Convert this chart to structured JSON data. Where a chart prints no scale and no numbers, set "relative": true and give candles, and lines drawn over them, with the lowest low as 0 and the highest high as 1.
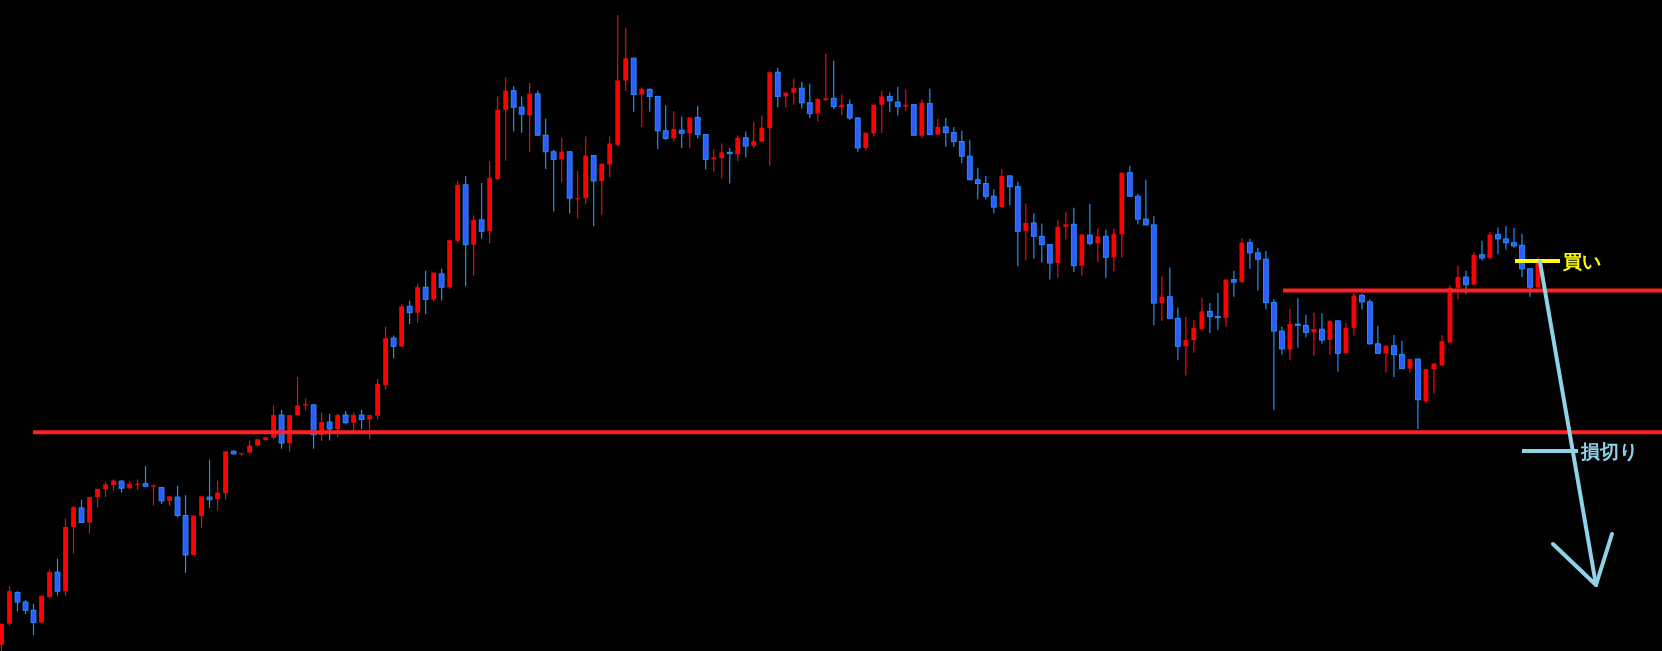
{
  "chart_data": {
    "type": "candlestick",
    "relative": true,
    "categories": [
      null,
      null,
      null,
      null,
      null,
      null,
      null,
      null,
      null,
      null,
      null,
      null,
      null,
      null,
      null,
      null,
      null,
      null,
      null,
      null,
      null,
      null,
      null,
      null,
      null,
      null,
      null,
      null,
      null,
      null,
      null,
      null,
      null,
      null,
      null,
      null,
      null,
      null,
      null,
      null,
      null,
      null,
      null,
      null,
      null,
      null,
      null,
      null,
      null,
      null,
      null,
      null,
      null,
      null,
      null,
      null,
      null,
      null,
      null,
      null,
      null,
      null,
      null,
      null,
      null,
      null,
      null,
      null,
      null,
      null,
      null,
      null,
      null,
      null,
      null,
      null,
      null,
      null,
      null,
      null,
      null,
      null,
      null,
      null,
      null,
      null,
      null,
      null,
      null,
      null,
      null,
      null,
      null,
      null,
      null,
      null,
      null,
      null,
      null,
      null,
      null,
      null,
      null,
      null,
      null,
      null,
      null,
      null,
      null,
      null,
      null,
      null,
      null,
      null,
      null,
      null,
      null,
      null,
      null,
      null,
      null,
      null,
      null,
      null,
      null,
      null,
      null,
      null,
      null,
      null,
      null,
      null,
      null,
      null,
      null,
      null,
      null,
      null,
      null,
      null,
      null,
      null,
      null,
      null,
      null,
      null,
      null,
      null,
      null,
      null,
      null,
      null,
      null,
      null,
      null,
      null,
      null,
      null,
      null,
      null,
      null,
      null,
      null,
      null,
      null,
      null,
      null,
      null,
      null,
      null,
      null,
      null,
      null,
      null,
      null,
      null,
      null,
      null,
      null,
      null,
      null,
      null,
      null,
      null,
      null,
      null,
      null,
      null,
      null,
      null,
      null,
      null,
      null
    ],
    "ohlc": [
      [
        0.01,
        0.043,
        0,
        0.043
      ],
      [
        0.043,
        0.102,
        0.04,
        0.094
      ],
      [
        0.092,
        0.094,
        0.062,
        0.077
      ],
      [
        0.077,
        0.08,
        0.058,
        0.064
      ],
      [
        0.064,
        0.074,
        0.025,
        0.045
      ],
      [
        0.045,
        0.087,
        0.044,
        0.087
      ],
      [
        0.085,
        0.128,
        0.083,
        0.124
      ],
      [
        0.124,
        0.145,
        0.087,
        0.094
      ],
      [
        0.094,
        0.208,
        0.086,
        0.195
      ],
      [
        0.195,
        0.228,
        0.153,
        0.226
      ],
      [
        0.225,
        0.238,
        0.202,
        0.202
      ],
      [
        0.202,
        0.242,
        0.185,
        0.242
      ],
      [
        0.242,
        0.255,
        0.226,
        0.255
      ],
      [
        0.254,
        0.266,
        0.242,
        0.262
      ],
      [
        0.261,
        0.27,
        0.252,
        0.268
      ],
      [
        0.267,
        0.269,
        0.249,
        0.256
      ],
      [
        0.256,
        0.267,
        0.255,
        0.263
      ],
      [
        0.262,
        0.27,
        0.253,
        0.263
      ],
      [
        0.263,
        0.291,
        0.258,
        0.259
      ],
      [
        0.259,
        0.262,
        0.229,
        0.26
      ],
      [
        0.257,
        0.258,
        0.231,
        0.236
      ],
      [
        0.236,
        0.244,
        0.228,
        0.243
      ],
      [
        0.242,
        0.26,
        0.21,
        0.213
      ],
      [
        0.213,
        0.245,
        0.123,
        0.151
      ],
      [
        0.151,
        0.213,
        0.151,
        0.213
      ],
      [
        0.212,
        0.243,
        0.194,
        0.243
      ],
      [
        0.242,
        0.301,
        0.225,
        0.238
      ],
      [
        0.239,
        0.268,
        0.221,
        0.249
      ],
      [
        0.248,
        0.314,
        0.238,
        0.314
      ],
      [
        0.314,
        0.316,
        0.309,
        0.31
      ],
      [
        0.31,
        0.311,
        0.307,
        0.311
      ],
      [
        0.312,
        0.331,
        0.311,
        0.323
      ],
      [
        0.323,
        0.334,
        0.322,
        0.333
      ],
      [
        0.332,
        0.336,
        0.331,
        0.336
      ],
      [
        0.335,
        0.386,
        0.333,
        0.371
      ],
      [
        0.371,
        0.379,
        0.318,
        0.327
      ],
      [
        0.327,
        0.371,
        0.313,
        0.371
      ],
      [
        0.371,
        0.431,
        0.37,
        0.386
      ],
      [
        0.386,
        0.397,
        0.378,
        0.388
      ],
      [
        0.387,
        0.388,
        0.318,
        0.34
      ],
      [
        0.34,
        0.375,
        0.33,
        0.36
      ],
      [
        0.36,
        0.373,
        0.331,
        0.349
      ],
      [
        0.349,
        0.373,
        0.336,
        0.371
      ],
      [
        0.371,
        0.377,
        0.356,
        0.359
      ],
      [
        0.359,
        0.375,
        0.345,
        0.371
      ],
      [
        0.371,
        0.379,
        0.349,
        0.364
      ],
      [
        0.364,
        0.371,
        0.333,
        0.371
      ],
      [
        0.37,
        0.428,
        0.364,
        0.42
      ],
      [
        0.418,
        0.51,
        0.411,
        0.492
      ],
      [
        0.492,
        0.496,
        0.46,
        0.479
      ],
      [
        0.479,
        0.546,
        0.478,
        0.542
      ],
      [
        0.542,
        0.551,
        0.514,
        0.532
      ],
      [
        0.532,
        0.578,
        0.516,
        0.572
      ],
      [
        0.572,
        0.598,
        0.53,
        0.553
      ],
      [
        0.553,
        0.595,
        0.55,
        0.595
      ],
      [
        0.593,
        0.601,
        0.551,
        0.572
      ],
      [
        0.572,
        0.646,
        0.569,
        0.646
      ],
      [
        0.645,
        0.739,
        0.642,
        0.733
      ],
      [
        0.733,
        0.747,
        0.573,
        0.639
      ],
      [
        0.639,
        0.685,
        0.59,
        0.678
      ],
      [
        0.678,
        0.736,
        0.648,
        0.66
      ],
      [
        0.66,
        0.77,
        0.641,
        0.744
      ],
      [
        0.742,
        0.872,
        0.741,
        0.851
      ],
      [
        0.851,
        0.902,
        0.771,
        0.881
      ],
      [
        0.881,
        0.888,
        0.817,
        0.855
      ],
      [
        0.855,
        0.872,
        0.815,
        0.844
      ],
      [
        0.842,
        0.893,
        0.785,
        0.876
      ],
      [
        0.876,
        0.881,
        0.81,
        0.811
      ],
      [
        0.811,
        0.837,
        0.758,
        0.785
      ],
      [
        0.785,
        0.788,
        0.691,
        0.773
      ],
      [
        0.773,
        0.807,
        0.737,
        0.785
      ],
      [
        0.785,
        0.786,
        0.688,
        0.712
      ],
      [
        0.711,
        0.755,
        0.68,
        0.712
      ],
      [
        0.712,
        0.809,
        0.703,
        0.779
      ],
      [
        0.779,
        0.78,
        0.668,
        0.739
      ],
      [
        0.739,
        0.767,
        0.686,
        0.766
      ],
      [
        0.765,
        0.809,
        0.745,
        0.798
      ],
      [
        0.796,
        1.0,
        0.794,
        0.897
      ],
      [
        0.897,
        0.979,
        0.88,
        0.932
      ],
      [
        0.932,
        0.933,
        0.848,
        0.875
      ],
      [
        0.875,
        0.886,
        0.824,
        0.884
      ],
      [
        0.883,
        0.885,
        0.848,
        0.872
      ],
      [
        0.872,
        0.873,
        0.789,
        0.818
      ],
      [
        0.818,
        0.858,
        0.804,
        0.806
      ],
      [
        0.806,
        0.849,
        0.801,
        0.821
      ],
      [
        0.819,
        0.84,
        0.791,
        0.814
      ],
      [
        0.814,
        0.839,
        0.791,
        0.839
      ],
      [
        0.839,
        0.857,
        0.806,
        0.812
      ],
      [
        0.812,
        0.813,
        0.757,
        0.773
      ],
      [
        0.773,
        0.789,
        0.754,
        0.776
      ],
      [
        0.775,
        0.798,
        0.743,
        0.784
      ],
      [
        0.784,
        0.791,
        0.735,
        0.782
      ],
      [
        0.781,
        0.811,
        0.77,
        0.807
      ],
      [
        0.807,
        0.817,
        0.776,
        0.794
      ],
      [
        0.794,
        0.832,
        0.791,
        0.802
      ],
      [
        0.801,
        0.842,
        0.8,
        0.823
      ],
      [
        0.822,
        0.911,
        0.763,
        0.91
      ],
      [
        0.91,
        0.917,
        0.855,
        0.872
      ],
      [
        0.872,
        0.878,
        0.855,
        0.878
      ],
      [
        0.878,
        0.9,
        0.859,
        0.885
      ],
      [
        0.885,
        0.895,
        0.853,
        0.862
      ],
      [
        0.862,
        0.892,
        0.838,
        0.845
      ],
      [
        0.845,
        0.869,
        0.832,
        0.868
      ],
      [
        0.866,
        0.939,
        0.865,
        0.869
      ],
      [
        0.869,
        0.928,
        0.852,
        0.856
      ],
      [
        0.855,
        0.875,
        0.842,
        0.859
      ],
      [
        0.859,
        0.867,
        0.835,
        0.838
      ],
      [
        0.838,
        0.84,
        0.785,
        0.791
      ],
      [
        0.791,
        0.815,
        0.787,
        0.815
      ],
      [
        0.814,
        0.859,
        0.809,
        0.859
      ],
      [
        0.859,
        0.881,
        0.814,
        0.872
      ],
      [
        0.872,
        0.878,
        0.847,
        0.865
      ],
      [
        0.863,
        0.887,
        0.842,
        0.856
      ],
      [
        0.856,
        0.883,
        0.849,
        0.859
      ],
      [
        0.859,
        0.86,
        0.81,
        0.811
      ],
      [
        0.81,
        0.867,
        0.807,
        0.862
      ],
      [
        0.861,
        0.884,
        0.811,
        0.812
      ],
      [
        0.812,
        0.837,
        0.812,
        0.824
      ],
      [
        0.824,
        0.838,
        0.793,
        0.815
      ],
      [
        0.815,
        0.824,
        0.793,
        0.801
      ],
      [
        0.801,
        0.818,
        0.767,
        0.778
      ],
      [
        0.778,
        0.804,
        0.74,
        0.741
      ],
      [
        0.741,
        0.76,
        0.71,
        0.735
      ],
      [
        0.735,
        0.747,
        0.71,
        0.715
      ],
      [
        0.715,
        0.726,
        0.688,
        0.698
      ],
      [
        0.698,
        0.758,
        0.697,
        0.747
      ],
      [
        0.747,
        0.748,
        0.701,
        0.73
      ],
      [
        0.73,
        0.738,
        0.605,
        0.66
      ],
      [
        0.66,
        0.704,
        0.614,
        0.673
      ],
      [
        0.673,
        0.688,
        0.617,
        0.652
      ],
      [
        0.652,
        0.672,
        0.611,
        0.639
      ],
      [
        0.639,
        0.64,
        0.584,
        0.61
      ],
      [
        0.61,
        0.678,
        0.587,
        0.667
      ],
      [
        0.667,
        0.69,
        0.647,
        0.671
      ],
      [
        0.671,
        0.697,
        0.596,
        0.606
      ],
      [
        0.606,
        0.655,
        0.59,
        0.655
      ],
      [
        0.654,
        0.703,
        0.638,
        0.641
      ],
      [
        0.641,
        0.665,
        0.611,
        0.652
      ],
      [
        0.652,
        0.662,
        0.586,
        0.619
      ],
      [
        0.619,
        0.664,
        0.597,
        0.656
      ],
      [
        0.655,
        0.752,
        0.618,
        0.752
      ],
      [
        0.752,
        0.763,
        0.715,
        0.715
      ],
      [
        0.715,
        0.719,
        0.671,
        0.679
      ],
      [
        0.679,
        0.741,
        0.67,
        0.67
      ],
      [
        0.67,
        0.684,
        0.512,
        0.547
      ],
      [
        0.547,
        0.589,
        0.519,
        0.557
      ],
      [
        0.557,
        0.603,
        0.523,
        0.523
      ],
      [
        0.523,
        0.54,
        0.457,
        0.479
      ],
      [
        0.479,
        0.525,
        0.433,
        0.489
      ],
      [
        0.489,
        0.521,
        0.469,
        0.508
      ],
      [
        0.506,
        0.555,
        0.506,
        0.534
      ],
      [
        0.534,
        0.547,
        0.5,
        0.526
      ],
      [
        0.526,
        0.563,
        0.505,
        0.525
      ],
      [
        0.524,
        0.584,
        0.51,
        0.584
      ],
      [
        0.584,
        0.598,
        0.557,
        0.58
      ],
      [
        0.58,
        0.649,
        0.579,
        0.642
      ],
      [
        0.642,
        0.648,
        0.601,
        0.626
      ],
      [
        0.626,
        0.634,
        0.567,
        0.616
      ],
      [
        0.616,
        0.629,
        0.537,
        0.548
      ],
      [
        0.548,
        0.553,
        0.379,
        0.503
      ],
      [
        0.503,
        0.51,
        0.466,
        0.475
      ],
      [
        0.474,
        0.538,
        0.457,
        0.514
      ],
      [
        0.514,
        0.555,
        0.477,
        0.512
      ],
      [
        0.512,
        0.529,
        0.493,
        0.501
      ],
      [
        0.501,
        0.532,
        0.464,
        0.506
      ],
      [
        0.506,
        0.531,
        0.483,
        0.489
      ],
      [
        0.489,
        0.52,
        0.465,
        0.519
      ],
      [
        0.519,
        0.52,
        0.439,
        0.468
      ],
      [
        0.468,
        0.516,
        0.468,
        0.508
      ],
      [
        0.508,
        0.562,
        0.496,
        0.559
      ],
      [
        0.559,
        0.562,
        0.537,
        0.549
      ],
      [
        0.549,
        0.553,
        0.482,
        0.483
      ],
      [
        0.483,
        0.511,
        0.468,
        0.468
      ],
      [
        0.468,
        0.48,
        0.438,
        0.48
      ],
      [
        0.48,
        0.497,
        0.431,
        0.466
      ],
      [
        0.466,
        0.488,
        0.444,
        0.444
      ],
      [
        0.444,
        0.459,
        0.438,
        0.459
      ],
      [
        0.459,
        0.46,
        0.349,
        0.395
      ],
      [
        0.393,
        0.443,
        0.39,
        0.443
      ],
      [
        0.443,
        0.452,
        0.405,
        0.452
      ],
      [
        0.449,
        0.497,
        0.449,
        0.487
      ],
      [
        0.485,
        0.575,
        0.485,
        0.571
      ],
      [
        0.571,
        0.606,
        0.553,
        0.588
      ],
      [
        0.588,
        0.598,
        0.561,
        0.576
      ],
      [
        0.576,
        0.627,
        0.576,
        0.623
      ],
      [
        0.623,
        0.645,
        0.614,
        0.618
      ],
      [
        0.618,
        0.659,
        0.616,
        0.655
      ],
      [
        0.655,
        0.666,
        0.624,
        0.648
      ],
      [
        0.648,
        0.668,
        0.631,
        0.642
      ],
      [
        0.642,
        0.665,
        0.634,
        0.637
      ],
      [
        0.638,
        0.656,
        0.588,
        0.601
      ],
      [
        0.601,
        0.602,
        0.557,
        0.572
      ],
      [
        0.572,
        0.619,
        0.571,
        0.616
      ]
    ],
    "ref_lines": [
      {
        "axis": "y",
        "value": 0.344,
        "color": "#ff2020"
      },
      {
        "axis": "y",
        "value": 0.567,
        "color": "#ff2020"
      }
    ],
    "annotations": [
      "買い",
      "損切り"
    ]
  }
}
